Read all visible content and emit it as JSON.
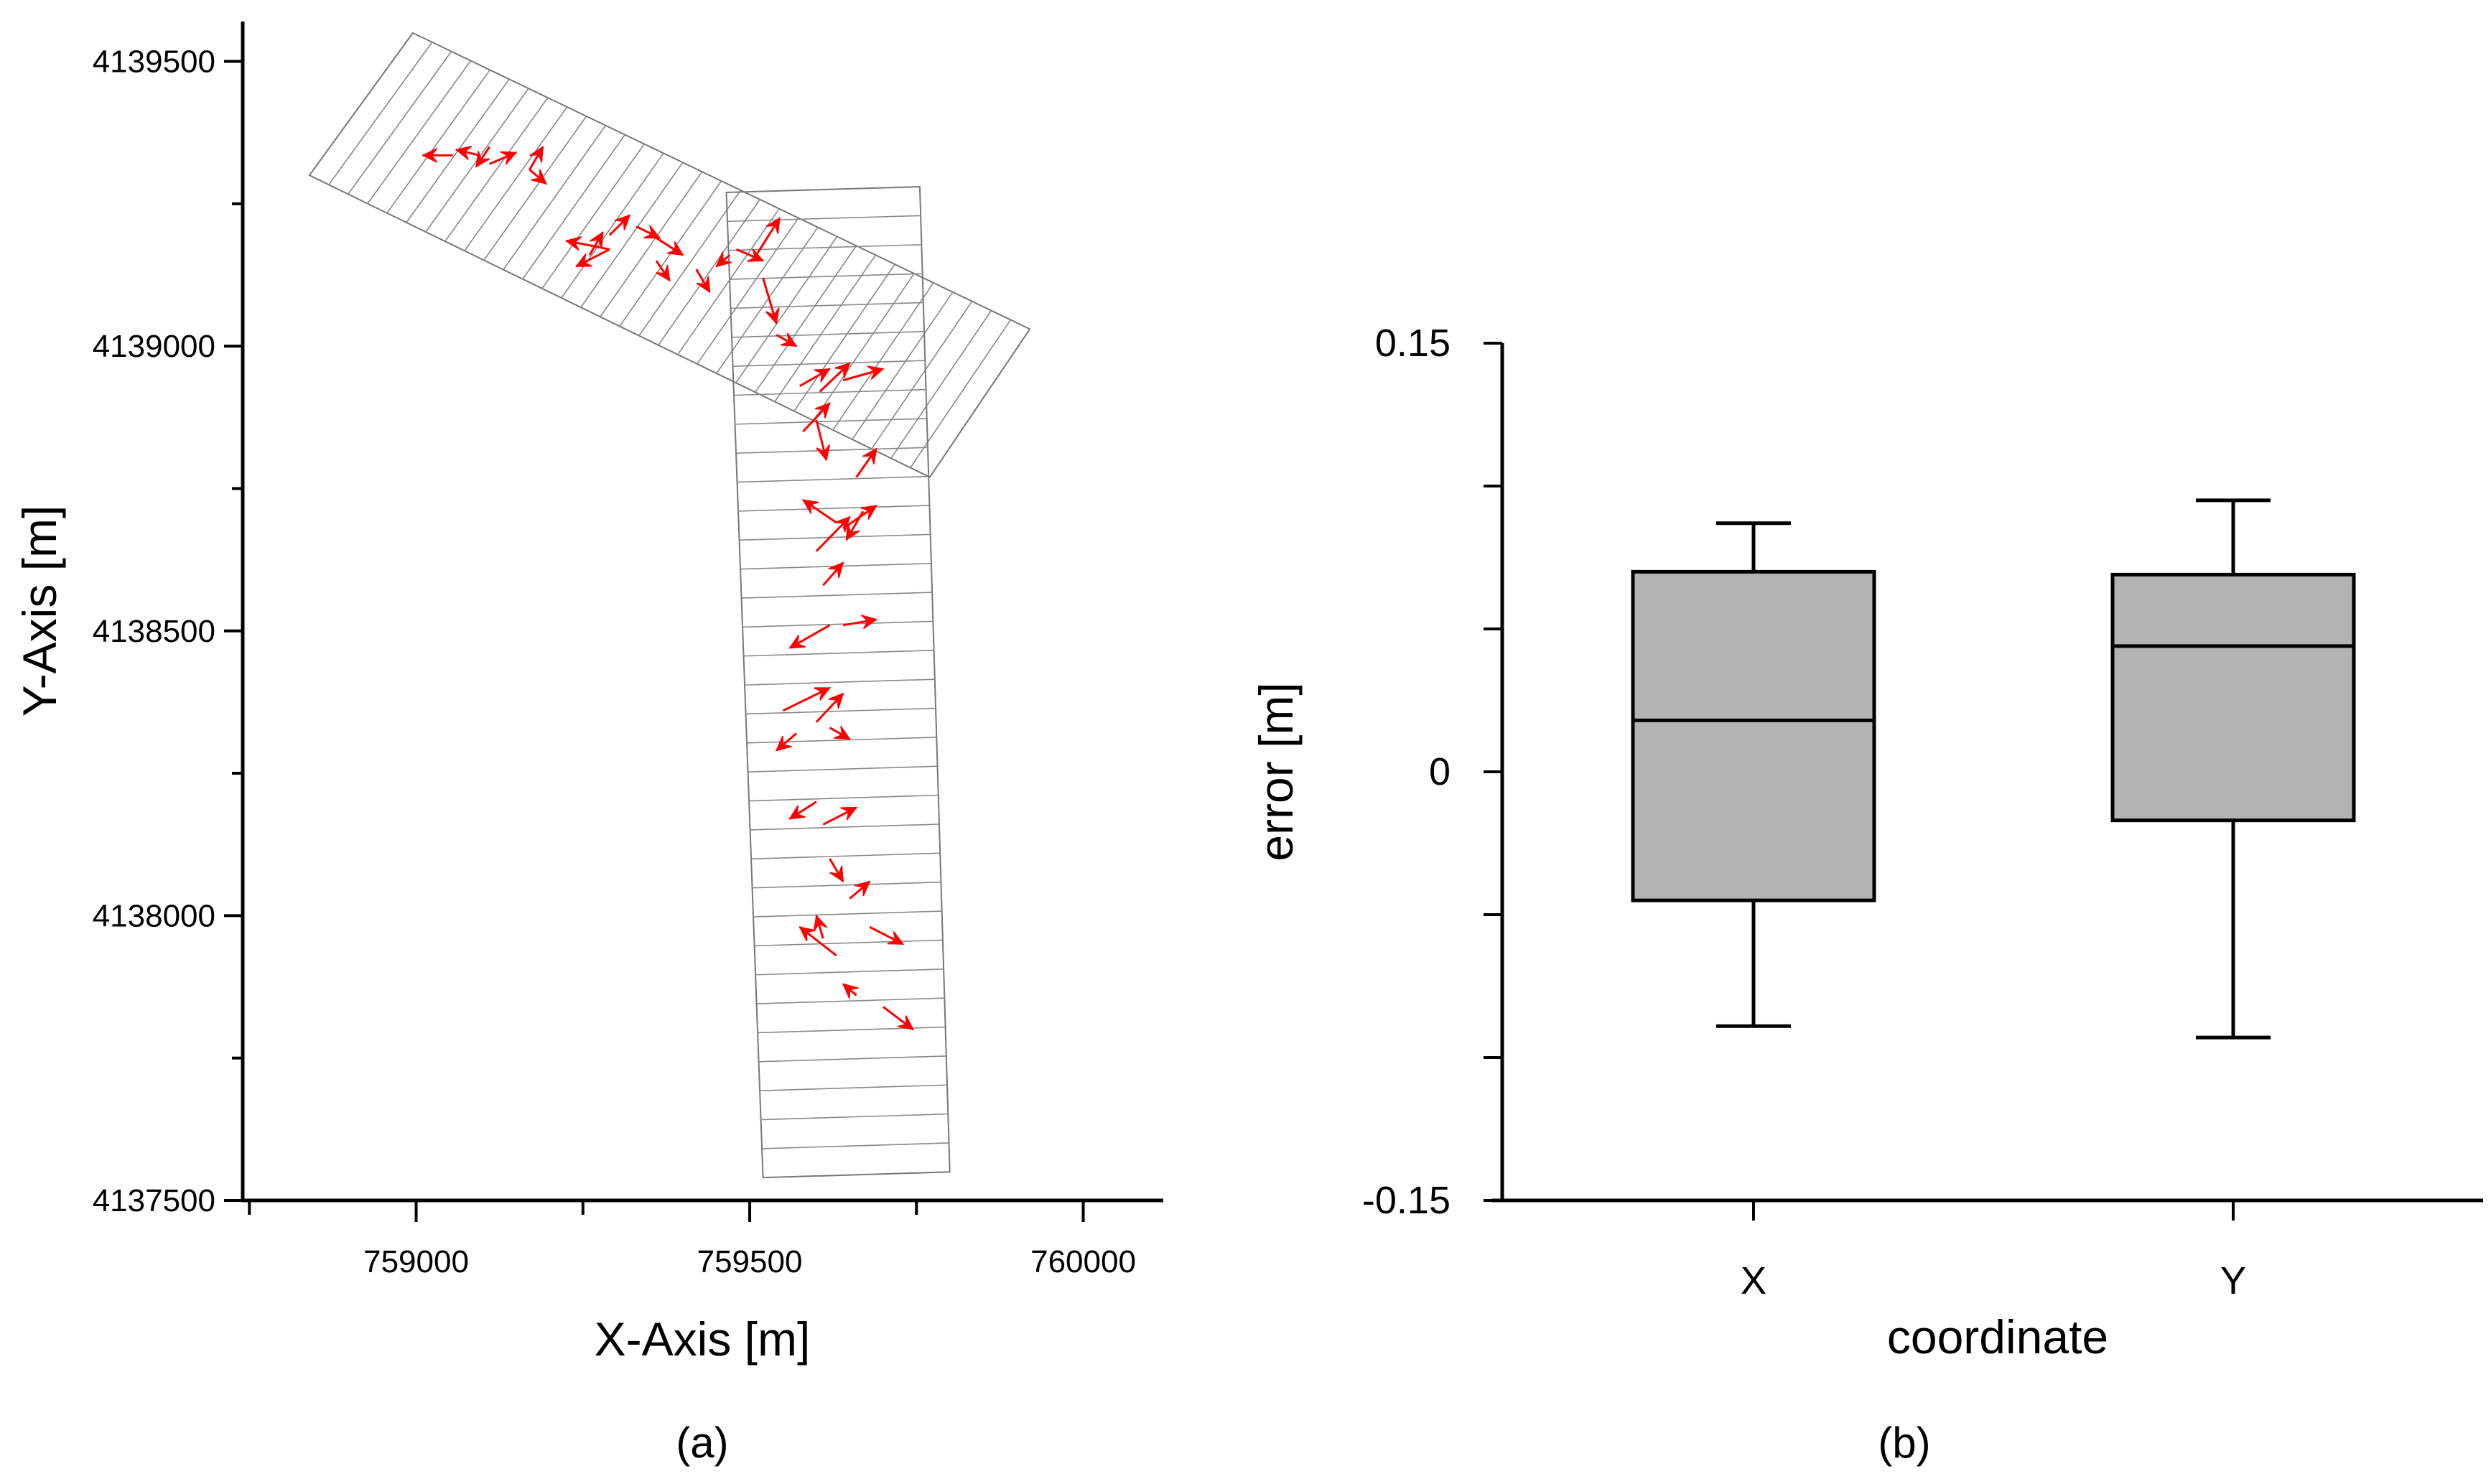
{
  "chart_data": [
    {
      "panel": "(a)",
      "type": "scatter",
      "title": "",
      "xlabel": "X-Axis [m]",
      "ylabel": "Y-Axis [m]",
      "xlim": [
        758740,
        760120
      ],
      "ylim": [
        4137500,
        4139570
      ],
      "grid": false,
      "xticks": [
        759000,
        759500,
        760000
      ],
      "xtick_labels": [
        "759000",
        "759500",
        "760000"
      ],
      "yticks": [
        4137500,
        4138000,
        4138500,
        4139000,
        4139500
      ],
      "ytick_labels": [
        "4137500",
        "4138000",
        "4138500",
        "4139000",
        "4139500"
      ],
      "strips": [
        {
          "name": "diagonal strip",
          "corners": [
            [
              758840,
              4139300
            ],
            [
              758995,
              4139550
            ],
            [
              759920,
              4139030
            ],
            [
              759770,
              4138770
            ]
          ],
          "cross_lines": 32
        },
        {
          "name": "vertical strip",
          "corners": [
            [
              759465,
              4139270
            ],
            [
              759755,
              4139280
            ],
            [
              759800,
              4137550
            ],
            [
              759520,
              4137540
            ]
          ],
          "cross_lines": 34
        }
      ],
      "error_vectors_color": "#ff0000",
      "error_vectors": [
        [
          759055,
          4139335,
          759010,
          4139335
        ],
        [
          759095,
          4139335,
          759060,
          4139345
        ],
        [
          759110,
          4139320,
          759150,
          4139340
        ],
        [
          759110,
          4139350,
          759090,
          4139315
        ],
        [
          759170,
          4139310,
          759190,
          4139350
        ],
        [
          759170,
          4139310,
          759195,
          4139285
        ],
        [
          759290,
          4139170,
          759225,
          4139185
        ],
        [
          759290,
          4139170,
          759240,
          4139140
        ],
        [
          759260,
          4139160,
          759280,
          4139200
        ],
        [
          759290,
          4139195,
          759320,
          4139230
        ],
        [
          759330,
          4139210,
          759365,
          4139190
        ],
        [
          759360,
          4139190,
          759400,
          4139160
        ],
        [
          759360,
          4139150,
          759380,
          4139115
        ],
        [
          759420,
          4139135,
          759440,
          4139095
        ],
        [
          759470,
          4139160,
          759450,
          4139140
        ],
        [
          759480,
          4139170,
          759520,
          4139150
        ],
        [
          759510,
          4139160,
          759545,
          4139225
        ],
        [
          759520,
          4139120,
          759540,
          4139040
        ],
        [
          759540,
          4139020,
          759570,
          4139000
        ],
        [
          759575,
          4138930,
          759620,
          4138960
        ],
        [
          759605,
          4138920,
          759650,
          4138970
        ],
        [
          759640,
          4138940,
          759700,
          4138960
        ],
        [
          759580,
          4138850,
          759620,
          4138900
        ],
        [
          759600,
          4138870,
          759615,
          4138800
        ],
        [
          759660,
          4138770,
          759690,
          4138820
        ],
        [
          759630,
          4138690,
          759580,
          4138730
        ],
        [
          759600,
          4138640,
          759650,
          4138700
        ],
        [
          759640,
          4138680,
          759690,
          4138720
        ],
        [
          759670,
          4138710,
          759645,
          4138660
        ],
        [
          759610,
          4138580,
          759640,
          4138620
        ],
        [
          759620,
          4138510,
          759560,
          4138470
        ],
        [
          759640,
          4138510,
          759690,
          4138520
        ],
        [
          759550,
          4138360,
          759620,
          4138400
        ],
        [
          759570,
          4138320,
          759540,
          4138290
        ],
        [
          759600,
          4138340,
          759640,
          4138390
        ],
        [
          759620,
          4138330,
          759650,
          4138310
        ],
        [
          759600,
          4138200,
          759560,
          4138170
        ],
        [
          759610,
          4138160,
          759660,
          4138190
        ],
        [
          759620,
          4138100,
          759640,
          4138060
        ],
        [
          759650,
          4138030,
          759680,
          4138060
        ],
        [
          759610,
          4137960,
          759600,
          4138000
        ],
        [
          759630,
          4137930,
          759575,
          4137980
        ],
        [
          759680,
          4137980,
          759730,
          4137950
        ],
        [
          759660,
          4137860,
          759640,
          4137880
        ],
        [
          759700,
          4137840,
          759745,
          4137800
        ]
      ]
    },
    {
      "panel": "(b)",
      "type": "box",
      "title": "",
      "xlabel": "coordinate",
      "ylabel": "error [m]",
      "ylim": [
        -0.15,
        0.15
      ],
      "grid": false,
      "yticks": [
        -0.15,
        -0.1,
        -0.05,
        0,
        0.05,
        0.1,
        0.15
      ],
      "ytick_labels": [
        "-0.15",
        "",
        "",
        "0",
        "",
        "",
        "0.15"
      ],
      "categories": [
        "X",
        "Y"
      ],
      "box_color": "#b3b3b3",
      "boxes": [
        {
          "category": "X",
          "whisker_low": -0.089,
          "q1": -0.045,
          "median": 0.018,
          "q3": 0.07,
          "whisker_high": 0.087
        },
        {
          "category": "Y",
          "whisker_low": -0.093,
          "q1": -0.017,
          "median": 0.044,
          "q3": 0.069,
          "whisker_high": 0.095
        }
      ]
    }
  ]
}
